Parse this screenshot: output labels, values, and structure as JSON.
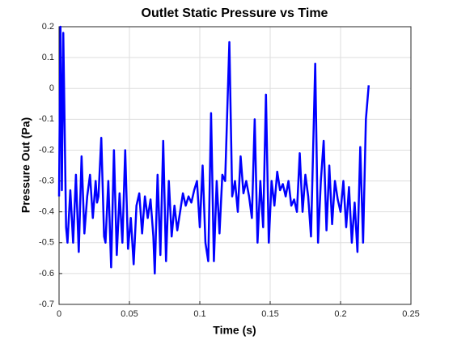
{
  "chart_data": {
    "type": "line",
    "title": "Outlet Static Pressure vs Time",
    "xlabel": "Time (s)",
    "ylabel": "Pressure Out (Pa)",
    "xlim": [
      0,
      0.25
    ],
    "xticks": [
      0,
      0.05,
      0.1,
      0.15,
      0.2,
      0.25
    ],
    "ylim": [
      -0.7,
      0.2
    ],
    "yticks": [
      -0.7,
      -0.6,
      -0.5,
      -0.4,
      -0.3,
      -0.2,
      -0.1,
      0,
      0.1,
      0.2
    ],
    "grid": true,
    "x": [
      0,
      0.001,
      0.002,
      0.003,
      0.005,
      0.006,
      0.008,
      0.01,
      0.012,
      0.014,
      0.016,
      0.018,
      0.02,
      0.022,
      0.024,
      0.026,
      0.027,
      0.028,
      0.03,
      0.032,
      0.033,
      0.035,
      0.037,
      0.039,
      0.041,
      0.043,
      0.045,
      0.047,
      0.049,
      0.051,
      0.053,
      0.055,
      0.057,
      0.059,
      0.061,
      0.063,
      0.065,
      0.067,
      0.068,
      0.07,
      0.072,
      0.074,
      0.076,
      0.078,
      0.08,
      0.082,
      0.084,
      0.086,
      0.088,
      0.09,
      0.092,
      0.094,
      0.096,
      0.098,
      0.1,
      0.102,
      0.104,
      0.106,
      0.108,
      0.11,
      0.112,
      0.114,
      0.116,
      0.118,
      0.121,
      0.123,
      0.125,
      0.127,
      0.129,
      0.131,
      0.133,
      0.135,
      0.137,
      0.139,
      0.141,
      0.143,
      0.145,
      0.147,
      0.149,
      0.151,
      0.153,
      0.155,
      0.157,
      0.159,
      0.161,
      0.163,
      0.165,
      0.167,
      0.169,
      0.171,
      0.173,
      0.175,
      0.177,
      0.179,
      0.182,
      0.184,
      0.186,
      0.188,
      0.19,
      0.192,
      0.194,
      0.196,
      0.198,
      0.2,
      0.202,
      0.204,
      0.206,
      0.208,
      0.21,
      0.212,
      0.214,
      0.216,
      0.218,
      0.22
    ],
    "series": [
      {
        "color": "#0000ff",
        "values": [
          -0.35,
          0.2,
          -0.33,
          0.18,
          -0.45,
          -0.5,
          -0.33,
          -0.5,
          -0.28,
          -0.53,
          -0.22,
          -0.47,
          -0.35,
          -0.28,
          -0.42,
          -0.3,
          -0.37,
          -0.35,
          -0.16,
          -0.48,
          -0.5,
          -0.3,
          -0.58,
          -0.2,
          -0.54,
          -0.34,
          -0.5,
          -0.2,
          -0.52,
          -0.42,
          -0.57,
          -0.38,
          -0.34,
          -0.47,
          -0.35,
          -0.42,
          -0.36,
          -0.48,
          -0.6,
          -0.28,
          -0.54,
          -0.17,
          -0.56,
          -0.3,
          -0.48,
          -0.38,
          -0.46,
          -0.4,
          -0.34,
          -0.38,
          -0.35,
          -0.37,
          -0.33,
          -0.3,
          -0.45,
          -0.25,
          -0.5,
          -0.56,
          -0.08,
          -0.56,
          -0.3,
          -0.47,
          -0.28,
          -0.3,
          0.15,
          -0.35,
          -0.3,
          -0.4,
          -0.22,
          -0.34,
          -0.3,
          -0.35,
          -0.42,
          -0.1,
          -0.5,
          -0.3,
          -0.45,
          -0.02,
          -0.5,
          -0.3,
          -0.38,
          -0.27,
          -0.33,
          -0.31,
          -0.35,
          -0.3,
          -0.38,
          -0.36,
          -0.4,
          -0.21,
          -0.4,
          -0.28,
          -0.35,
          -0.48,
          0.08,
          -0.5,
          -0.3,
          -0.17,
          -0.46,
          -0.25,
          -0.44,
          -0.3,
          -0.36,
          -0.4,
          -0.3,
          -0.45,
          -0.32,
          -0.5,
          -0.37,
          -0.53,
          -0.19,
          -0.5,
          -0.1,
          0.01
        ]
      }
    ]
  }
}
